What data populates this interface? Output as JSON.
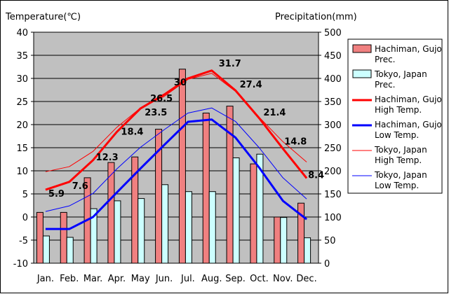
{
  "chart_data": {
    "type": "bar+line",
    "left_axis": {
      "label": "Temperature(℃)",
      "range": [
        -10,
        40
      ],
      "ticks": [
        40,
        35,
        30,
        25,
        20,
        15,
        10,
        5,
        0,
        -5,
        -10
      ]
    },
    "right_axis": {
      "label": "Precipitation(mm)",
      "range": [
        0,
        500
      ],
      "ticks": [
        500,
        450,
        400,
        350,
        300,
        250,
        200,
        150,
        100,
        50,
        0
      ]
    },
    "categories": [
      "Jan.",
      "Feb.",
      "Mar.",
      "Apr.",
      "May",
      "Jun.",
      "Jul.",
      "Aug.",
      "Sep.",
      "Oct.",
      "Nov.",
      "Dec."
    ],
    "series": [
      {
        "name": "Hachiman, Gujo Prec.",
        "legend": [
          "Hachiman, Gujo",
          "Prec."
        ],
        "kind": "bar",
        "axis": "right",
        "color": "#f08080",
        "values": [
          110,
          110,
          185,
          218,
          230,
          290,
          420,
          325,
          340,
          215,
          100,
          130
        ]
      },
      {
        "name": "Tokyo, Japan Prec.",
        "legend": [
          "Tokyo, Japan",
          "Prec."
        ],
        "kind": "bar",
        "axis": "right",
        "color": "#ccffff",
        "values": [
          59,
          56,
          118,
          135,
          140,
          170,
          155,
          155,
          228,
          236,
          99,
          55
        ]
      },
      {
        "name": "Hachiman, Gujo High Temp.",
        "legend": [
          "Hachiman, Gujo",
          "High Temp."
        ],
        "kind": "line",
        "axis": "left",
        "color": "#ff0000",
        "width": 3,
        "values": [
          5.9,
          7.6,
          12.3,
          18.4,
          23.5,
          26.5,
          30.0,
          31.7,
          27.4,
          21.4,
          14.8,
          8.4
        ],
        "labels": [
          "5.9",
          "7.6",
          "12.3",
          "18.4",
          "23.5",
          "26.5",
          "30",
          "31.7",
          "27.4",
          "21.4",
          "14.8",
          "8.4"
        ]
      },
      {
        "name": "Hachiman, Gujo Low Temp.",
        "legend": [
          "Hachiman, Gujo",
          "Low Temp."
        ],
        "kind": "line",
        "axis": "left",
        "color": "#0000ff",
        "width": 3,
        "values": [
          -2.6,
          -2.6,
          0.0,
          5.3,
          10.5,
          15.6,
          20.6,
          21.1,
          17.2,
          10.7,
          3.5,
          -0.5
        ]
      },
      {
        "name": "Tokyo, Japan High Temp.",
        "legend": [
          "Tokyo, Japan",
          "High Temp."
        ],
        "kind": "line",
        "axis": "left",
        "color": "#ff0000",
        "width": 1,
        "values": [
          9.8,
          10.9,
          14.2,
          19.4,
          23.6,
          26.1,
          29.8,
          31.1,
          27.2,
          21.6,
          16.3,
          11.9
        ]
      },
      {
        "name": "Tokyo, Japan Low Temp.",
        "legend": [
          "Tokyo, Japan",
          "Low Temp."
        ],
        "kind": "line",
        "axis": "left",
        "color": "#0000ff",
        "width": 1,
        "values": [
          1.2,
          2.4,
          5.1,
          10.4,
          15.1,
          18.9,
          22.5,
          23.6,
          20.7,
          15.0,
          8.5,
          3.9
        ]
      }
    ],
    "plot_background": "#c0c0c0",
    "grid": true,
    "legend_position": "right"
  }
}
